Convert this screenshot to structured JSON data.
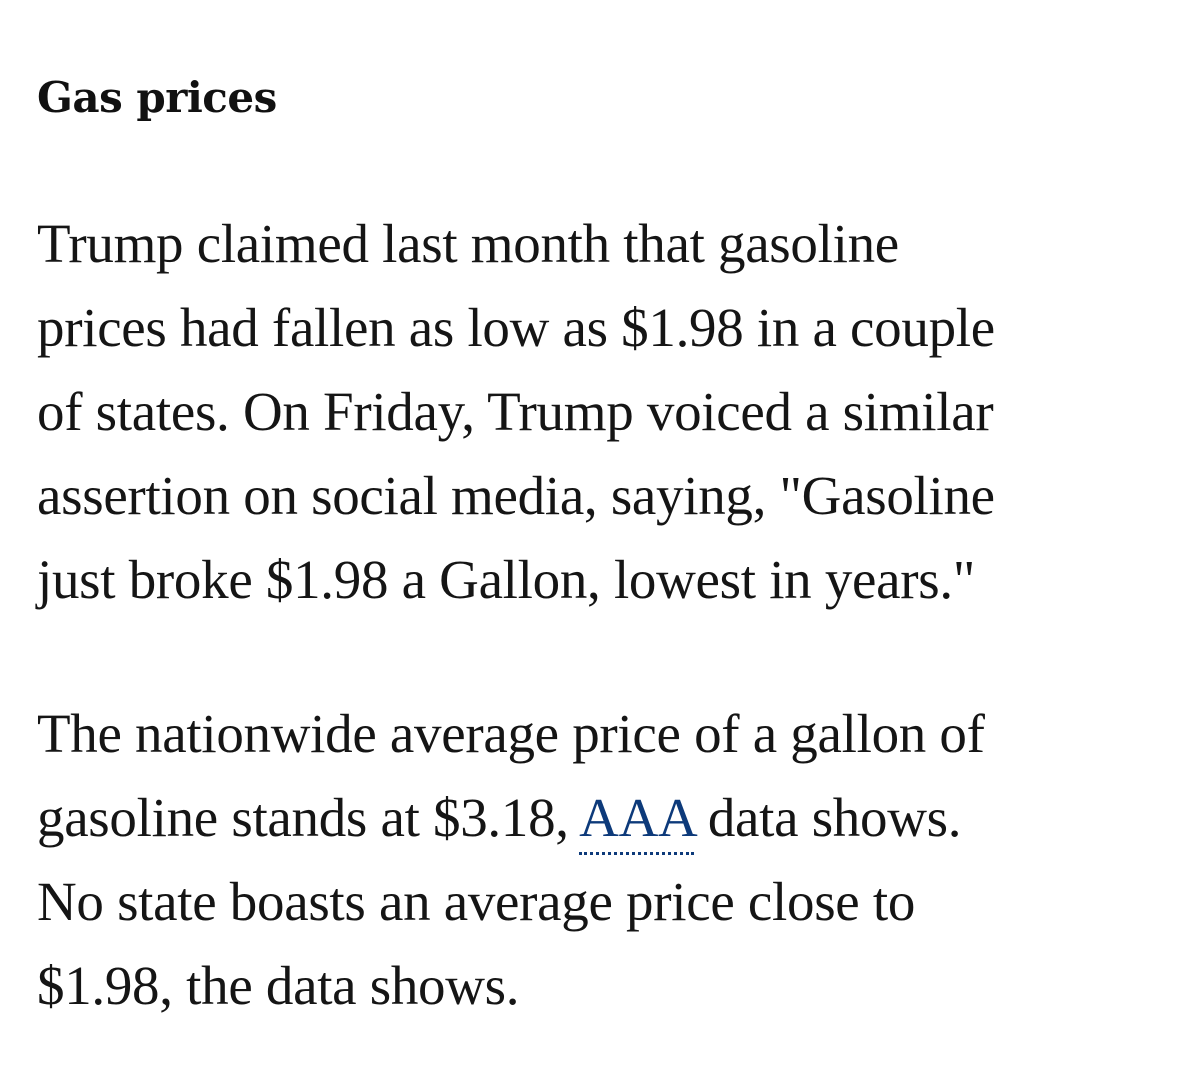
{
  "section": {
    "heading": "Gas prices"
  },
  "paragraph1": {
    "lines": [
      "Trump claimed last month that gasoline",
      "prices had fallen as low as $1.98 in a couple",
      "of states. On Friday, Trump voiced a similar",
      "assertion on social media, saying, \"Gasoline",
      "just broke $1.98 a Gallon, lowest in years.\""
    ]
  },
  "paragraph2": {
    "line1": "The nationwide average price of a gallon of",
    "line2_before": "gasoline stands at $3.18, ",
    "link_text": "AAA",
    "line2_after": " data shows.",
    "line3": "No state boasts an average price close to",
    "line4": "$1.98, the data shows."
  },
  "colors": {
    "text": "#151515",
    "link": "#0d3a7a",
    "background": "#ffffff"
  }
}
